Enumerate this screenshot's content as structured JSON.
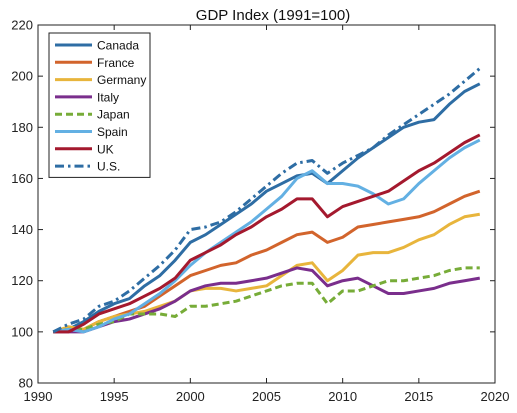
{
  "chart_data": {
    "type": "line",
    "title": "GDP Index  (1991=100)",
    "xlabel": "",
    "ylabel": "",
    "xlim": [
      1990,
      2020
    ],
    "ylim": [
      80,
      220
    ],
    "xticks": [
      1990,
      1995,
      2000,
      2005,
      2010,
      2015,
      2020
    ],
    "yticks": [
      80,
      100,
      120,
      140,
      160,
      180,
      200,
      220
    ],
    "grid": false,
    "legend_position": "top-left",
    "x": [
      1991,
      1992,
      1993,
      1994,
      1995,
      1996,
      1997,
      1998,
      1999,
      2000,
      2001,
      2002,
      2003,
      2004,
      2005,
      2006,
      2007,
      2008,
      2009,
      2010,
      2011,
      2012,
      2013,
      2014,
      2015,
      2016,
      2017,
      2018,
      2019
    ],
    "series": [
      {
        "name": "Canada",
        "color": "#2e6da4",
        "dash": "solid",
        "values": [
          100,
          101,
          104,
          108,
          111,
          113,
          118,
          122,
          128,
          135,
          138,
          142,
          146,
          150,
          155,
          158,
          161,
          162,
          158,
          163,
          168,
          172,
          176,
          180,
          182,
          183,
          189,
          194,
          197
        ]
      },
      {
        "name": "France",
        "color": "#d2642c",
        "dash": "solid",
        "values": [
          100,
          101,
          101,
          104,
          106,
          108,
          110,
          114,
          118,
          122,
          124,
          126,
          127,
          130,
          132,
          135,
          138,
          139,
          135,
          137,
          141,
          142,
          143,
          144,
          145,
          147,
          150,
          153,
          155
        ]
      },
      {
        "name": "Germany",
        "color": "#e8b53c",
        "dash": "solid",
        "values": [
          100,
          102,
          101,
          104,
          106,
          107,
          108,
          110,
          112,
          116,
          117,
          117,
          116,
          117,
          118,
          122,
          126,
          127,
          120,
          124,
          130,
          131,
          131,
          133,
          136,
          138,
          142,
          145,
          146
        ]
      },
      {
        "name": "Italy",
        "color": "#7a2e8c",
        "dash": "solid",
        "values": [
          100,
          100,
          100,
          102,
          104,
          105,
          107,
          109,
          112,
          116,
          118,
          119,
          119,
          120,
          121,
          123,
          125,
          124,
          118,
          120,
          121,
          118,
          115,
          115,
          116,
          117,
          119,
          120,
          121
        ]
      },
      {
        "name": "Japan",
        "color": "#77ac38",
        "dash": "dash",
        "values": [
          100,
          101,
          101,
          103,
          104,
          107,
          107,
          107,
          106,
          110,
          110,
          111,
          112,
          114,
          116,
          118,
          119,
          119,
          111,
          116,
          116,
          118,
          120,
          120,
          121,
          122,
          124,
          125,
          125
        ]
      },
      {
        "name": "Spain",
        "color": "#63b0e3",
        "dash": "solid",
        "values": [
          100,
          101,
          100,
          102,
          105,
          107,
          111,
          115,
          120,
          126,
          131,
          135,
          139,
          143,
          148,
          153,
          160,
          163,
          158,
          158,
          157,
          154,
          150,
          152,
          158,
          163,
          168,
          172,
          175
        ]
      },
      {
        "name": "UK",
        "color": "#a4192e",
        "dash": "solid",
        "values": [
          100,
          100,
          103,
          107,
          109,
          111,
          114,
          117,
          121,
          128,
          131,
          134,
          138,
          141,
          145,
          148,
          152,
          152,
          145,
          149,
          151,
          153,
          155,
          159,
          163,
          166,
          170,
          174,
          177
        ]
      },
      {
        "name": "U.S.",
        "color": "#2e6da4",
        "dash": "dashdot",
        "values": [
          100,
          103,
          105,
          110,
          112,
          116,
          121,
          126,
          132,
          140,
          141,
          143,
          147,
          152,
          157,
          162,
          166,
          167,
          162,
          166,
          169,
          172,
          177,
          181,
          185,
          189,
          193,
          198,
          203
        ]
      }
    ]
  }
}
